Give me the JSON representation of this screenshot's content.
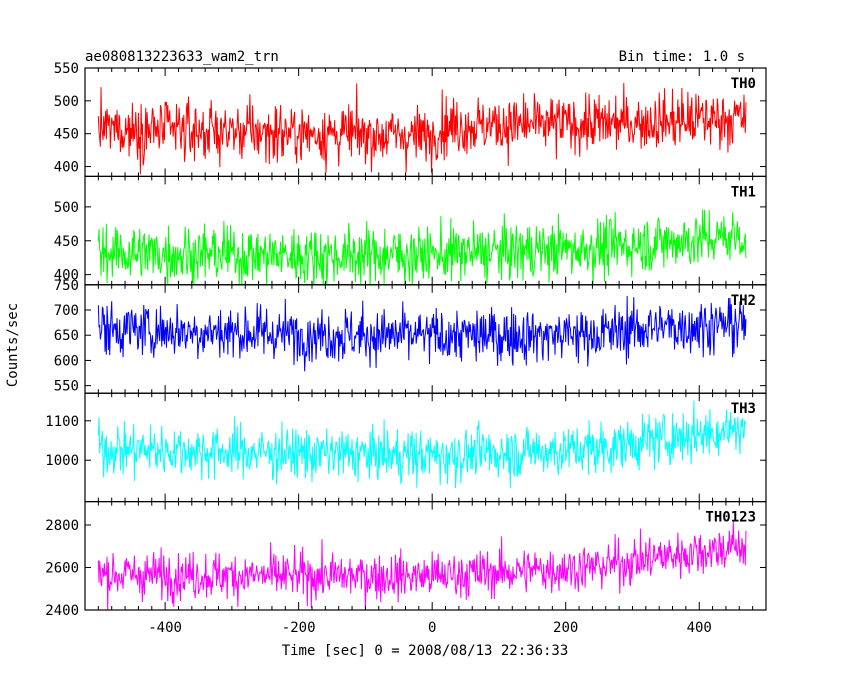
{
  "header": {
    "left_title": "ae080813223633_wam2_trn",
    "right_title": "Bin time: 1.0 s"
  },
  "axes": {
    "xlabel": "Time [sec] 0 = 2008/08/13 22:36:33",
    "ylabel": "Counts/sec"
  },
  "chart_data": {
    "type": "line",
    "title": "ae080813223633_wam2_trn",
    "subtitle": "Bin time: 1.0 s",
    "xlabel": "Time [sec] 0 = 2008/08/13 22:36:33",
    "ylabel": "Counts/sec",
    "xlim": [
      -520,
      500
    ],
    "x_range": [
      -500,
      470
    ],
    "bin_time": 1.0,
    "xticks": [
      -400,
      -200,
      0,
      200,
      400
    ],
    "grid": false,
    "panels": [
      {
        "name": "TH0",
        "color": "#ff0000",
        "ylim": [
          385,
          550
        ],
        "yticks": [
          400,
          450,
          500,
          550
        ],
        "trend": [
          [
            -500,
            458
          ],
          [
            -250,
            452
          ],
          [
            0,
            447
          ],
          [
            10,
            462
          ],
          [
            250,
            465
          ],
          [
            470,
            475
          ]
        ],
        "noise_sd": 22
      },
      {
        "name": "TH1",
        "color": "#00ff00",
        "ylim": [
          385,
          545
        ],
        "yticks": [
          400,
          450,
          500
        ],
        "trend": [
          [
            -500,
            433
          ],
          [
            -200,
            428
          ],
          [
            0,
            430
          ],
          [
            250,
            440
          ],
          [
            470,
            458
          ]
        ],
        "noise_sd": 21
      },
      {
        "name": "TH2",
        "color": "#0000ff",
        "ylim": [
          535,
          750
        ],
        "yticks": [
          550,
          600,
          650,
          700,
          750
        ],
        "trend": [
          [
            -500,
            663
          ],
          [
            -200,
            652
          ],
          [
            0,
            648
          ],
          [
            250,
            652
          ],
          [
            320,
            665
          ],
          [
            470,
            672
          ]
        ],
        "noise_sd": 27
      },
      {
        "name": "TH3",
        "color": "#00ffff",
        "ylim": [
          895,
          1170
        ],
        "yticks": [
          1000,
          1100
        ],
        "trend": [
          [
            -500,
            1030
          ],
          [
            -200,
            1018
          ],
          [
            0,
            1012
          ],
          [
            250,
            1030
          ],
          [
            350,
            1055
          ],
          [
            470,
            1085
          ]
        ],
        "noise_sd": 33
      },
      {
        "name": "TH0123",
        "color": "#ff00ff",
        "ylim": [
          2400,
          2910
        ],
        "yticks": [
          2400,
          2600,
          2800
        ],
        "trend": [
          [
            -500,
            2568
          ],
          [
            -200,
            2560
          ],
          [
            0,
            2560
          ],
          [
            250,
            2605
          ],
          [
            340,
            2650
          ],
          [
            470,
            2705
          ]
        ],
        "noise_sd": 55
      }
    ]
  }
}
